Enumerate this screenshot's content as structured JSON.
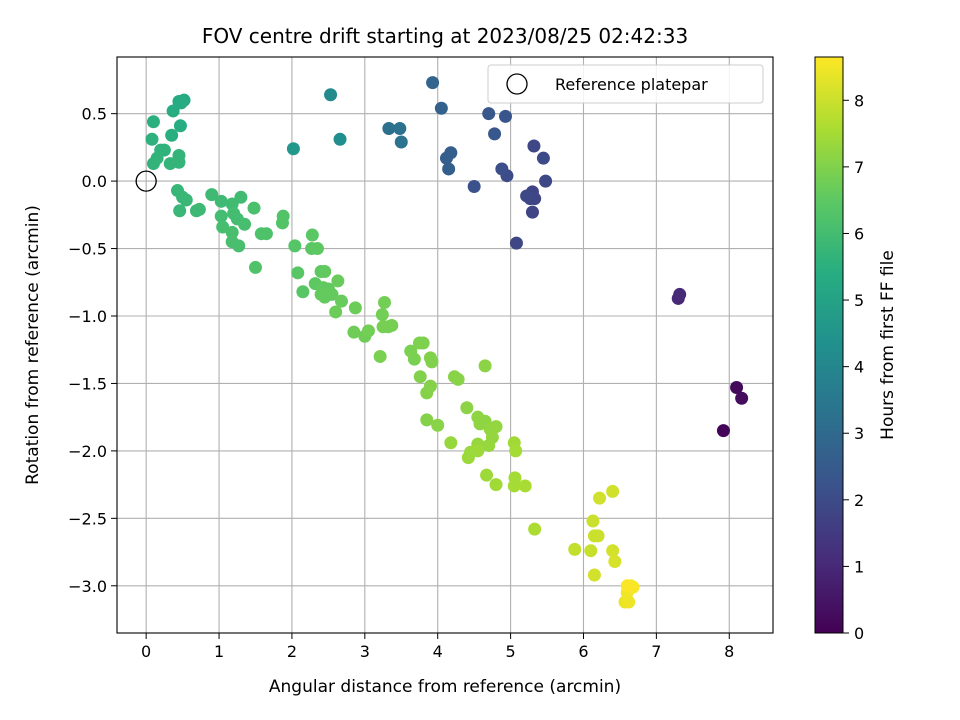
{
  "chart_data": {
    "type": "scatter",
    "title": "FOV centre drift starting at 2023/08/25 02:42:33",
    "xlabel": "Angular distance from reference (arcmin)",
    "ylabel": "Rotation from reference (arcmin)",
    "xlim": [
      -0.4,
      8.6
    ],
    "ylim": [
      -3.35,
      0.92
    ],
    "xticks": [
      0,
      1,
      2,
      3,
      4,
      5,
      6,
      7,
      8
    ],
    "xtick_labels": [
      "0",
      "1",
      "2",
      "3",
      "4",
      "5",
      "6",
      "7",
      "8"
    ],
    "yticks": [
      0.5,
      0.0,
      -0.5,
      -1.0,
      -1.5,
      -2.0,
      -2.5,
      -3.0
    ],
    "ytick_labels": [
      "0.5",
      "0.0",
      "−0.5",
      "−1.0",
      "−1.5",
      "−2.0",
      "−2.5",
      "−3.0"
    ],
    "grid": true,
    "legend_position": "top-right",
    "colormap": "viridis",
    "colorbar": {
      "label": "Hours from first FF file",
      "range": [
        0,
        8.65
      ],
      "ticks": [
        0,
        1,
        2,
        3,
        4,
        5,
        6,
        7,
        8
      ],
      "tick_labels": [
        "0",
        "1",
        "2",
        "3",
        "4",
        "5",
        "6",
        "7",
        "8"
      ]
    },
    "reference_point": {
      "x": 0,
      "y": 0,
      "label": "Reference platepar"
    },
    "series": [
      {
        "points": [
          {
            "x": 7.92,
            "y": -1.85,
            "h": 0.1
          },
          {
            "x": 8.1,
            "y": -1.53,
            "h": 0.2
          },
          {
            "x": 8.17,
            "y": -1.61,
            "h": 0.25
          },
          {
            "x": 7.3,
            "y": -0.87,
            "h": 1.0
          },
          {
            "x": 7.32,
            "y": -0.84,
            "h": 1.05
          },
          {
            "x": 5.08,
            "y": -0.46,
            "h": 1.85
          },
          {
            "x": 5.3,
            "y": -0.23,
            "h": 1.8
          },
          {
            "x": 5.3,
            "y": -0.08,
            "h": 1.75
          },
          {
            "x": 5.27,
            "y": -0.13,
            "h": 1.8
          },
          {
            "x": 5.33,
            "y": -0.13,
            "h": 1.85
          },
          {
            "x": 5.22,
            "y": -0.11,
            "h": 1.9
          },
          {
            "x": 5.48,
            "y": 0.0,
            "h": 1.9
          },
          {
            "x": 5.32,
            "y": 0.26,
            "h": 1.9
          },
          {
            "x": 5.45,
            "y": 0.17,
            "h": 1.95
          },
          {
            "x": 4.95,
            "y": 0.04,
            "h": 2.0
          },
          {
            "x": 4.88,
            "y": 0.09,
            "h": 2.1
          },
          {
            "x": 4.5,
            "y": -0.04,
            "h": 2.15
          },
          {
            "x": 4.7,
            "y": 0.5,
            "h": 2.4
          },
          {
            "x": 4.93,
            "y": 0.48,
            "h": 2.3
          },
          {
            "x": 4.78,
            "y": 0.35,
            "h": 2.35
          },
          {
            "x": 4.12,
            "y": 0.17,
            "h": 2.6
          },
          {
            "x": 4.18,
            "y": 0.21,
            "h": 2.6
          },
          {
            "x": 4.15,
            "y": 0.09,
            "h": 2.65
          },
          {
            "x": 4.05,
            "y": 0.54,
            "h": 2.7
          },
          {
            "x": 3.93,
            "y": 0.73,
            "h": 2.8
          },
          {
            "x": 3.33,
            "y": 0.39,
            "h": 3.2
          },
          {
            "x": 3.48,
            "y": 0.39,
            "h": 3.25
          },
          {
            "x": 3.5,
            "y": 0.29,
            "h": 3.3
          },
          {
            "x": 2.53,
            "y": 0.64,
            "h": 4.1
          },
          {
            "x": 2.66,
            "y": 0.31,
            "h": 4.3
          },
          {
            "x": 2.02,
            "y": 0.24,
            "h": 4.6
          },
          {
            "x": 0.45,
            "y": 0.59,
            "h": 5.3
          },
          {
            "x": 0.52,
            "y": 0.6,
            "h": 5.3
          },
          {
            "x": 0.48,
            "y": 0.58,
            "h": 5.35
          },
          {
            "x": 0.37,
            "y": 0.52,
            "h": 5.4
          },
          {
            "x": 0.47,
            "y": 0.41,
            "h": 5.4
          },
          {
            "x": 0.35,
            "y": 0.34,
            "h": 5.45
          },
          {
            "x": 0.1,
            "y": 0.44,
            "h": 5.5
          },
          {
            "x": 0.08,
            "y": 0.31,
            "h": 5.55
          },
          {
            "x": 0.2,
            "y": 0.23,
            "h": 5.6
          },
          {
            "x": 0.25,
            "y": 0.23,
            "h": 5.6
          },
          {
            "x": 0.15,
            "y": 0.17,
            "h": 5.65
          },
          {
            "x": 0.1,
            "y": 0.13,
            "h": 5.65
          },
          {
            "x": 0.33,
            "y": 0.13,
            "h": 5.7
          },
          {
            "x": 0.45,
            "y": 0.14,
            "h": 5.7
          },
          {
            "x": 0.45,
            "y": 0.19,
            "h": 5.7
          },
          {
            "x": 0.43,
            "y": -0.07,
            "h": 5.75
          },
          {
            "x": 0.5,
            "y": -0.12,
            "h": 5.75
          },
          {
            "x": 0.55,
            "y": -0.14,
            "h": 5.8
          },
          {
            "x": 0.46,
            "y": -0.22,
            "h": 5.8
          },
          {
            "x": 0.69,
            "y": -0.22,
            "h": 5.85
          },
          {
            "x": 0.73,
            "y": -0.21,
            "h": 5.85
          },
          {
            "x": 0.9,
            "y": -0.1,
            "h": 5.9
          },
          {
            "x": 1.03,
            "y": -0.15,
            "h": 5.9
          },
          {
            "x": 1.18,
            "y": -0.17,
            "h": 5.95
          },
          {
            "x": 1.3,
            "y": -0.12,
            "h": 5.95
          },
          {
            "x": 1.03,
            "y": -0.26,
            "h": 6.0
          },
          {
            "x": 1.2,
            "y": -0.24,
            "h": 6.0
          },
          {
            "x": 1.25,
            "y": -0.28,
            "h": 6.0
          },
          {
            "x": 1.05,
            "y": -0.34,
            "h": 6.05
          },
          {
            "x": 1.35,
            "y": -0.32,
            "h": 6.05
          },
          {
            "x": 1.18,
            "y": -0.38,
            "h": 6.1
          },
          {
            "x": 1.18,
            "y": -0.45,
            "h": 6.1
          },
          {
            "x": 1.27,
            "y": -0.48,
            "h": 6.1
          },
          {
            "x": 1.48,
            "y": -0.2,
            "h": 6.15
          },
          {
            "x": 1.58,
            "y": -0.39,
            "h": 6.2
          },
          {
            "x": 1.65,
            "y": -0.39,
            "h": 6.2
          },
          {
            "x": 1.5,
            "y": -0.64,
            "h": 6.25
          },
          {
            "x": 1.88,
            "y": -0.26,
            "h": 6.3
          },
          {
            "x": 1.87,
            "y": -0.31,
            "h": 6.3
          },
          {
            "x": 2.04,
            "y": -0.48,
            "h": 6.35
          },
          {
            "x": 2.08,
            "y": -0.68,
            "h": 6.4
          },
          {
            "x": 2.15,
            "y": -0.82,
            "h": 6.4
          },
          {
            "x": 2.28,
            "y": -0.4,
            "h": 6.45
          },
          {
            "x": 2.27,
            "y": -0.5,
            "h": 6.45
          },
          {
            "x": 2.35,
            "y": -0.5,
            "h": 6.5
          },
          {
            "x": 2.32,
            "y": -0.76,
            "h": 6.5
          },
          {
            "x": 2.4,
            "y": -0.67,
            "h": 6.5
          },
          {
            "x": 2.45,
            "y": -0.67,
            "h": 6.55
          },
          {
            "x": 2.43,
            "y": -0.79,
            "h": 6.55
          },
          {
            "x": 2.5,
            "y": -0.8,
            "h": 6.55
          },
          {
            "x": 2.4,
            "y": -0.84,
            "h": 6.6
          },
          {
            "x": 2.45,
            "y": -0.86,
            "h": 6.6
          },
          {
            "x": 2.55,
            "y": -0.84,
            "h": 6.6
          },
          {
            "x": 2.63,
            "y": -0.74,
            "h": 6.65
          },
          {
            "x": 2.68,
            "y": -0.89,
            "h": 6.65
          },
          {
            "x": 2.6,
            "y": -0.97,
            "h": 6.7
          },
          {
            "x": 2.87,
            "y": -0.94,
            "h": 6.7
          },
          {
            "x": 2.85,
            "y": -1.12,
            "h": 6.75
          },
          {
            "x": 3.0,
            "y": -1.15,
            "h": 6.75
          },
          {
            "x": 3.05,
            "y": -1.11,
            "h": 6.8
          },
          {
            "x": 3.27,
            "y": -0.9,
            "h": 6.8
          },
          {
            "x": 3.24,
            "y": -0.99,
            "h": 6.8
          },
          {
            "x": 3.25,
            "y": -1.08,
            "h": 6.85
          },
          {
            "x": 3.32,
            "y": -1.08,
            "h": 6.85
          },
          {
            "x": 3.37,
            "y": -1.07,
            "h": 6.85
          },
          {
            "x": 3.21,
            "y": -1.3,
            "h": 6.9
          },
          {
            "x": 3.63,
            "y": -1.26,
            "h": 6.9
          },
          {
            "x": 3.68,
            "y": -1.32,
            "h": 6.9
          },
          {
            "x": 3.75,
            "y": -1.2,
            "h": 6.95
          },
          {
            "x": 3.8,
            "y": -1.2,
            "h": 6.95
          },
          {
            "x": 3.9,
            "y": -1.31,
            "h": 7.0
          },
          {
            "x": 3.92,
            "y": -1.34,
            "h": 7.0
          },
          {
            "x": 3.76,
            "y": -1.45,
            "h": 7.0
          },
          {
            "x": 3.85,
            "y": -1.57,
            "h": 7.05
          },
          {
            "x": 3.9,
            "y": -1.52,
            "h": 7.05
          },
          {
            "x": 3.85,
            "y": -1.77,
            "h": 7.05
          },
          {
            "x": 4.0,
            "y": -1.81,
            "h": 7.1
          },
          {
            "x": 4.23,
            "y": -1.45,
            "h": 7.1
          },
          {
            "x": 4.28,
            "y": -1.47,
            "h": 7.1
          },
          {
            "x": 4.65,
            "y": -1.37,
            "h": 7.15
          },
          {
            "x": 4.4,
            "y": -1.68,
            "h": 7.15
          },
          {
            "x": 4.55,
            "y": -1.75,
            "h": 7.2
          },
          {
            "x": 4.58,
            "y": -1.8,
            "h": 7.2
          },
          {
            "x": 4.65,
            "y": -1.78,
            "h": 7.2
          },
          {
            "x": 4.72,
            "y": -1.84,
            "h": 7.25
          },
          {
            "x": 4.8,
            "y": -1.82,
            "h": 7.25
          },
          {
            "x": 4.75,
            "y": -1.9,
            "h": 7.25
          },
          {
            "x": 4.7,
            "y": -1.96,
            "h": 7.3
          },
          {
            "x": 4.55,
            "y": -1.95,
            "h": 7.3
          },
          {
            "x": 4.18,
            "y": -1.94,
            "h": 7.3
          },
          {
            "x": 4.42,
            "y": -2.05,
            "h": 7.35
          },
          {
            "x": 4.45,
            "y": -2.01,
            "h": 7.35
          },
          {
            "x": 4.55,
            "y": -2.0,
            "h": 7.4
          },
          {
            "x": 4.67,
            "y": -2.18,
            "h": 7.4
          },
          {
            "x": 4.8,
            "y": -2.25,
            "h": 7.45
          },
          {
            "x": 5.05,
            "y": -1.94,
            "h": 7.45
          },
          {
            "x": 5.07,
            "y": -2.0,
            "h": 7.5
          },
          {
            "x": 5.06,
            "y": -2.2,
            "h": 7.5
          },
          {
            "x": 5.05,
            "y": -2.26,
            "h": 7.5
          },
          {
            "x": 5.2,
            "y": -2.26,
            "h": 7.55
          },
          {
            "x": 5.33,
            "y": -2.58,
            "h": 7.6
          },
          {
            "x": 5.88,
            "y": -2.73,
            "h": 7.9
          },
          {
            "x": 6.1,
            "y": -2.74,
            "h": 7.95
          },
          {
            "x": 6.13,
            "y": -2.52,
            "h": 8.0
          },
          {
            "x": 6.2,
            "y": -2.63,
            "h": 8.0
          },
          {
            "x": 6.15,
            "y": -2.63,
            "h": 8.0
          },
          {
            "x": 6.22,
            "y": -2.35,
            "h": 8.05
          },
          {
            "x": 6.4,
            "y": -2.3,
            "h": 8.05
          },
          {
            "x": 6.15,
            "y": -2.92,
            "h": 8.1
          },
          {
            "x": 6.4,
            "y": -2.74,
            "h": 8.1
          },
          {
            "x": 6.43,
            "y": -2.82,
            "h": 8.15
          },
          {
            "x": 6.57,
            "y": -3.12,
            "h": 8.4
          },
          {
            "x": 6.62,
            "y": -3.12,
            "h": 8.45
          },
          {
            "x": 6.6,
            "y": -3.05,
            "h": 8.5
          },
          {
            "x": 6.65,
            "y": -3.0,
            "h": 8.55
          },
          {
            "x": 6.6,
            "y": -3.0,
            "h": 8.6
          },
          {
            "x": 6.68,
            "y": -3.01,
            "h": 8.6
          }
        ]
      }
    ]
  }
}
